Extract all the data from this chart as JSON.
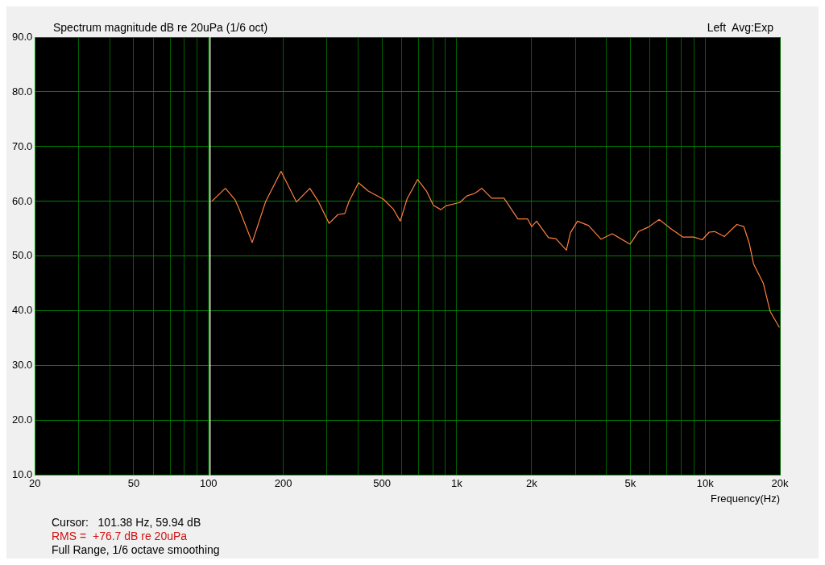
{
  "chart_data": {
    "type": "line",
    "title": "Spectrum magnitude dB re 20uPa (1/6 oct)",
    "xlabel": "Frequency(Hz)",
    "annotations": [
      "Left  Avg:Exp",
      "Cursor:   101.38 Hz, 59.94 dB",
      "RMS =  +76.7 dB re 20uPa",
      "Full Range, 1/6 octave smoothing"
    ],
    "log": "x",
    "grid": true,
    "legend": false,
    "marker": "none",
    "line_style": "solid",
    "xlim": [
      20,
      20000
    ],
    "ylim": [
      10,
      90
    ],
    "xticks": [
      20,
      {
        "value": 30,
        "label": null
      },
      {
        "value": 40,
        "label": null
      },
      50,
      {
        "value": 60,
        "label": null
      },
      {
        "value": 70,
        "label": null
      },
      {
        "value": 80,
        "label": null
      },
      {
        "value": 90,
        "label": null
      },
      100,
      200,
      {
        "value": 300,
        "label": null
      },
      {
        "value": 400,
        "label": null
      },
      500,
      {
        "value": 600,
        "label": null
      },
      {
        "value": 700,
        "label": null
      },
      {
        "value": 800,
        "label": null
      },
      {
        "value": 900,
        "label": null
      },
      {
        "value": 1000,
        "label": "1k"
      },
      {
        "value": 2000,
        "label": "2k"
      },
      {
        "value": 3000,
        "label": null
      },
      {
        "value": 4000,
        "label": null
      },
      {
        "value": 5000,
        "label": "5k"
      },
      {
        "value": 6000,
        "label": null
      },
      {
        "value": 7000,
        "label": null
      },
      {
        "value": 8000,
        "label": null
      },
      {
        "value": 9000,
        "label": null
      },
      {
        "value": 10000,
        "label": "10k"
      },
      {
        "value": 20000,
        "label": "20k"
      }
    ],
    "yticks": [
      {
        "value": 10,
        "label": "10.0"
      },
      {
        "value": 20,
        "label": "20.0"
      },
      {
        "value": 30,
        "label": "30.0"
      },
      {
        "value": 40,
        "label": "40.0"
      },
      {
        "value": 50,
        "label": "50.0"
      },
      {
        "value": 60,
        "label": "60.0"
      },
      {
        "value": 70,
        "label": "70.0"
      },
      {
        "value": 80,
        "label": "80.0"
      },
      {
        "value": 90,
        "label": "90.0"
      }
    ],
    "ref_lines": [
      {
        "axis": "x",
        "value": 101.38,
        "color": "#fffff0"
      }
    ],
    "series": [
      {
        "color": "#ff8040",
        "x": [
          103,
          117,
          128,
          133,
          150,
          170,
          196,
          226,
          256,
          277,
          306,
          332,
          354,
          368,
          402,
          440,
          507,
          555,
          592,
          631,
          695,
          755,
          805,
          863,
          904,
          1028,
          1097,
          1184,
          1262,
          1381,
          1549,
          1762,
          1929,
          2004,
          2095,
          2340,
          2507,
          2762,
          2870,
          3062,
          3395,
          3811,
          4225,
          4987,
          5391,
          5899,
          6537,
          7240,
          8126,
          9010,
          9737,
          10380,
          10930,
          11960,
          13420,
          14320,
          15070,
          15670,
          17140,
          18280,
          19910
        ],
        "values": [
          60.0,
          62.4,
          60.3,
          58.6,
          52.5,
          60.0,
          65.5,
          59.9,
          62.4,
          60.0,
          56.0,
          57.6,
          57.8,
          60.0,
          63.4,
          61.9,
          60.4,
          58.6,
          56.4,
          60.5,
          64.0,
          61.9,
          59.3,
          58.5,
          59.2,
          59.8,
          61.0,
          61.5,
          62.4,
          60.6,
          60.6,
          56.8,
          56.8,
          55.4,
          56.4,
          53.4,
          53.2,
          51.1,
          54.3,
          56.4,
          55.6,
          53.1,
          54.1,
          52.2,
          54.5,
          55.3,
          56.7,
          55.1,
          53.5,
          53.5,
          53.0,
          54.4,
          54.5,
          53.6,
          55.8,
          55.4,
          52.3,
          48.6,
          45.1,
          39.9,
          37.0
        ]
      }
    ]
  }
}
